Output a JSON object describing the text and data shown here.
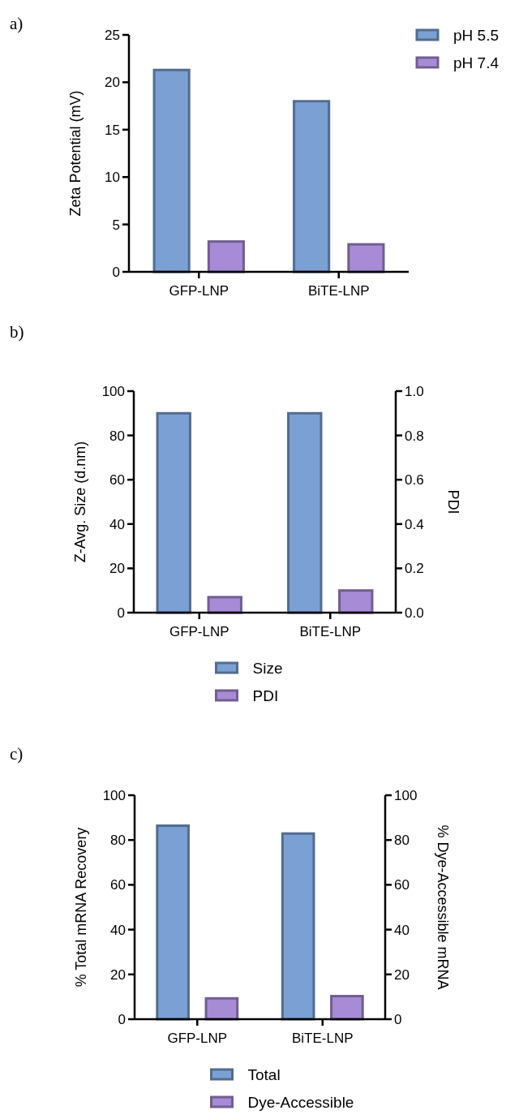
{
  "chart_data": [
    {
      "type": "bar",
      "title": "a)",
      "ylabel": "Zeta Potential (mV)",
      "categories": [
        "GFP-LNP",
        "BiTE-LNP"
      ],
      "series": [
        {
          "name": "pH 5.5",
          "color": "#7ba0d4",
          "values": [
            21.3,
            18.0
          ]
        },
        {
          "name": "pH 7.4",
          "color": "#a78bd6",
          "values": [
            3.2,
            2.9
          ]
        }
      ],
      "ylim": [
        0,
        25
      ],
      "yticks": [
        0,
        5,
        10,
        15,
        20,
        25
      ],
      "legend": "top right"
    },
    {
      "type": "bar",
      "title": "b)",
      "ylabel": "Z-Avg. Size (d.nm)",
      "y2label": "PDI",
      "categories": [
        "GFP-LNP",
        "BiTE-LNP"
      ],
      "series": [
        {
          "name": "Size",
          "color": "#7ba0d4",
          "values": [
            90,
            90
          ]
        },
        {
          "name": "PDI",
          "color": "#a78bd6",
          "values": [
            0.07,
            0.1
          ],
          "axis": "y2"
        }
      ],
      "ylim": [
        0,
        100
      ],
      "yticks": [
        0,
        20,
        40,
        60,
        80,
        100
      ],
      "y2lim": [
        0,
        1
      ],
      "y2ticks": [
        {
          "value": 0,
          "label": "0.0"
        },
        0.2,
        0.4,
        0.6,
        0.8,
        {
          "value": 1,
          "label": "1.0"
        }
      ],
      "legend": "bottom"
    },
    {
      "type": "bar",
      "title": "c)",
      "ylabel": "% Total mRNA Recovery",
      "y2label": "% Dye-Accessible mRNA",
      "categories": [
        "GFP-LNP",
        "BiTE-LNP"
      ],
      "series": [
        {
          "name": "Total",
          "color": "#7ba0d4",
          "values": [
            86.4,
            82.9
          ]
        },
        {
          "name": "Dye-Accessible",
          "color": "#a78bd6",
          "values": [
            9.3,
            10.3
          ],
          "axis": "y2"
        }
      ],
      "ylim": [
        0,
        100
      ],
      "yticks": [
        0,
        20,
        40,
        60,
        80,
        100
      ],
      "y2lim": [
        0,
        100
      ],
      "y2ticks": [
        0,
        20,
        40,
        60,
        80,
        100
      ],
      "legend": "bottom"
    }
  ]
}
